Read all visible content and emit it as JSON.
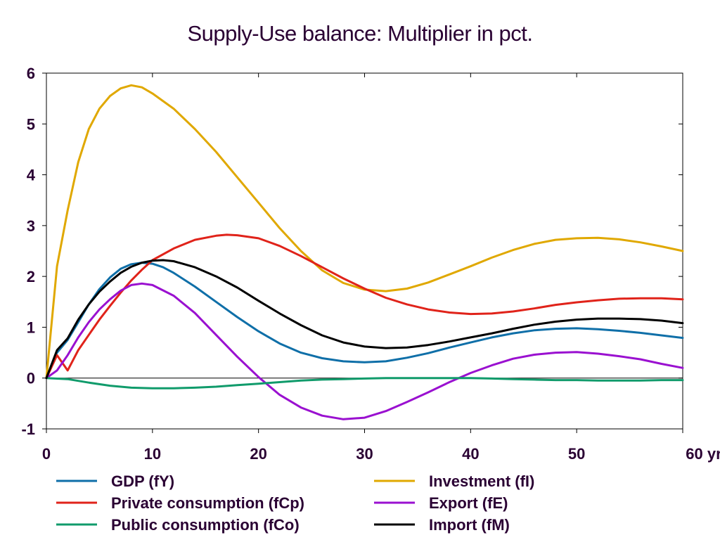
{
  "chart_data": {
    "type": "line",
    "title": "Supply-Use balance: Multiplier in pct.",
    "xlabel": "",
    "ylabel": "",
    "x_unit_label": "yr",
    "xlim": [
      0,
      60
    ],
    "ylim": [
      -1,
      6
    ],
    "x_ticks": [
      0,
      10,
      20,
      30,
      40,
      50,
      60
    ],
    "y_ticks": [
      -1,
      0,
      1,
      2,
      3,
      4,
      5,
      6
    ],
    "grid": false,
    "legend_position": "bottom",
    "series": [
      {
        "name": "GDP (fY)",
        "color": "#0f6fa8",
        "points": [
          [
            0,
            0
          ],
          [
            1,
            0.5
          ],
          [
            2,
            0.75
          ],
          [
            3,
            1.1
          ],
          [
            4,
            1.45
          ],
          [
            5,
            1.75
          ],
          [
            6,
            1.98
          ],
          [
            7,
            2.15
          ],
          [
            8,
            2.24
          ],
          [
            9,
            2.27
          ],
          [
            10,
            2.25
          ],
          [
            11,
            2.18
          ],
          [
            12,
            2.07
          ],
          [
            14,
            1.8
          ],
          [
            16,
            1.5
          ],
          [
            18,
            1.2
          ],
          [
            20,
            0.92
          ],
          [
            22,
            0.68
          ],
          [
            24,
            0.5
          ],
          [
            26,
            0.39
          ],
          [
            28,
            0.33
          ],
          [
            30,
            0.31
          ],
          [
            32,
            0.33
          ],
          [
            34,
            0.4
          ],
          [
            36,
            0.49
          ],
          [
            38,
            0.6
          ],
          [
            40,
            0.7
          ],
          [
            42,
            0.8
          ],
          [
            44,
            0.88
          ],
          [
            46,
            0.94
          ],
          [
            48,
            0.97
          ],
          [
            50,
            0.98
          ],
          [
            52,
            0.96
          ],
          [
            54,
            0.93
          ],
          [
            56,
            0.89
          ],
          [
            58,
            0.84
          ],
          [
            60,
            0.79
          ]
        ]
      },
      {
        "name": "Investment (fI)",
        "color": "#e0a800",
        "points": [
          [
            0,
            0
          ],
          [
            1,
            2.2
          ],
          [
            2,
            3.3
          ],
          [
            3,
            4.25
          ],
          [
            4,
            4.9
          ],
          [
            5,
            5.3
          ],
          [
            6,
            5.55
          ],
          [
            7,
            5.7
          ],
          [
            8,
            5.76
          ],
          [
            9,
            5.72
          ],
          [
            10,
            5.6
          ],
          [
            12,
            5.3
          ],
          [
            14,
            4.9
          ],
          [
            16,
            4.45
          ],
          [
            18,
            3.95
          ],
          [
            20,
            3.45
          ],
          [
            22,
            2.95
          ],
          [
            24,
            2.5
          ],
          [
            26,
            2.12
          ],
          [
            28,
            1.87
          ],
          [
            30,
            1.74
          ],
          [
            32,
            1.71
          ],
          [
            34,
            1.76
          ],
          [
            36,
            1.88
          ],
          [
            38,
            2.04
          ],
          [
            40,
            2.2
          ],
          [
            42,
            2.37
          ],
          [
            44,
            2.52
          ],
          [
            46,
            2.64
          ],
          [
            48,
            2.72
          ],
          [
            50,
            2.75
          ],
          [
            52,
            2.76
          ],
          [
            54,
            2.73
          ],
          [
            56,
            2.67
          ],
          [
            58,
            2.59
          ],
          [
            60,
            2.5
          ]
        ]
      },
      {
        "name": "Private consumption (fCp)",
        "color": "#e0231a",
        "points": [
          [
            0,
            0
          ],
          [
            1,
            0.45
          ],
          [
            2,
            0.15
          ],
          [
            3,
            0.55
          ],
          [
            4,
            0.85
          ],
          [
            5,
            1.15
          ],
          [
            6,
            1.42
          ],
          [
            7,
            1.68
          ],
          [
            8,
            1.92
          ],
          [
            9,
            2.13
          ],
          [
            10,
            2.32
          ],
          [
            12,
            2.55
          ],
          [
            14,
            2.72
          ],
          [
            16,
            2.8
          ],
          [
            17,
            2.82
          ],
          [
            18,
            2.81
          ],
          [
            20,
            2.75
          ],
          [
            22,
            2.6
          ],
          [
            24,
            2.4
          ],
          [
            26,
            2.18
          ],
          [
            28,
            1.96
          ],
          [
            30,
            1.76
          ],
          [
            32,
            1.58
          ],
          [
            34,
            1.45
          ],
          [
            36,
            1.35
          ],
          [
            38,
            1.29
          ],
          [
            40,
            1.26
          ],
          [
            42,
            1.27
          ],
          [
            44,
            1.31
          ],
          [
            46,
            1.37
          ],
          [
            48,
            1.44
          ],
          [
            50,
            1.49
          ],
          [
            52,
            1.53
          ],
          [
            54,
            1.56
          ],
          [
            56,
            1.57
          ],
          [
            58,
            1.57
          ],
          [
            60,
            1.55
          ]
        ]
      },
      {
        "name": "Export (fE)",
        "color": "#9a10d0",
        "points": [
          [
            0,
            0
          ],
          [
            1,
            0.15
          ],
          [
            2,
            0.45
          ],
          [
            3,
            0.8
          ],
          [
            4,
            1.1
          ],
          [
            5,
            1.35
          ],
          [
            6,
            1.55
          ],
          [
            7,
            1.72
          ],
          [
            8,
            1.83
          ],
          [
            9,
            1.86
          ],
          [
            10,
            1.83
          ],
          [
            12,
            1.62
          ],
          [
            14,
            1.28
          ],
          [
            16,
            0.85
          ],
          [
            18,
            0.42
          ],
          [
            20,
            0.02
          ],
          [
            22,
            -0.33
          ],
          [
            24,
            -0.58
          ],
          [
            26,
            -0.74
          ],
          [
            28,
            -0.81
          ],
          [
            30,
            -0.78
          ],
          [
            32,
            -0.65
          ],
          [
            34,
            -0.47
          ],
          [
            36,
            -0.28
          ],
          [
            38,
            -0.08
          ],
          [
            40,
            0.1
          ],
          [
            42,
            0.25
          ],
          [
            44,
            0.38
          ],
          [
            46,
            0.46
          ],
          [
            48,
            0.5
          ],
          [
            50,
            0.51
          ],
          [
            52,
            0.48
          ],
          [
            54,
            0.43
          ],
          [
            56,
            0.37
          ],
          [
            58,
            0.28
          ],
          [
            60,
            0.2
          ]
        ]
      },
      {
        "name": "Public consumption (fCo)",
        "color": "#109b6b",
        "points": [
          [
            0,
            0
          ],
          [
            2,
            -0.02
          ],
          [
            4,
            -0.09
          ],
          [
            6,
            -0.15
          ],
          [
            8,
            -0.19
          ],
          [
            10,
            -0.2
          ],
          [
            12,
            -0.2
          ],
          [
            14,
            -0.19
          ],
          [
            16,
            -0.17
          ],
          [
            18,
            -0.14
          ],
          [
            20,
            -0.11
          ],
          [
            22,
            -0.08
          ],
          [
            24,
            -0.05
          ],
          [
            26,
            -0.03
          ],
          [
            28,
            -0.02
          ],
          [
            30,
            -0.01
          ],
          [
            32,
            0.0
          ],
          [
            34,
            0.0
          ],
          [
            36,
            0.0
          ],
          [
            38,
            0.0
          ],
          [
            40,
            0.0
          ],
          [
            42,
            -0.01
          ],
          [
            44,
            -0.02
          ],
          [
            46,
            -0.03
          ],
          [
            48,
            -0.04
          ],
          [
            50,
            -0.04
          ],
          [
            52,
            -0.05
          ],
          [
            54,
            -0.05
          ],
          [
            56,
            -0.05
          ],
          [
            58,
            -0.04
          ],
          [
            60,
            -0.04
          ]
        ]
      },
      {
        "name": "Import (fM)",
        "color": "#000000",
        "points": [
          [
            0,
            0
          ],
          [
            1,
            0.55
          ],
          [
            2,
            0.78
          ],
          [
            3,
            1.15
          ],
          [
            4,
            1.45
          ],
          [
            5,
            1.7
          ],
          [
            6,
            1.9
          ],
          [
            7,
            2.07
          ],
          [
            8,
            2.19
          ],
          [
            9,
            2.27
          ],
          [
            10,
            2.31
          ],
          [
            11,
            2.32
          ],
          [
            12,
            2.3
          ],
          [
            14,
            2.18
          ],
          [
            16,
            2.0
          ],
          [
            18,
            1.78
          ],
          [
            20,
            1.52
          ],
          [
            22,
            1.27
          ],
          [
            24,
            1.04
          ],
          [
            26,
            0.84
          ],
          [
            28,
            0.7
          ],
          [
            30,
            0.62
          ],
          [
            32,
            0.59
          ],
          [
            34,
            0.6
          ],
          [
            36,
            0.65
          ],
          [
            38,
            0.72
          ],
          [
            40,
            0.8
          ],
          [
            42,
            0.88
          ],
          [
            44,
            0.97
          ],
          [
            46,
            1.05
          ],
          [
            48,
            1.11
          ],
          [
            50,
            1.15
          ],
          [
            52,
            1.17
          ],
          [
            54,
            1.17
          ],
          [
            56,
            1.16
          ],
          [
            58,
            1.13
          ],
          [
            60,
            1.08
          ]
        ]
      }
    ],
    "legend_layout": [
      "GDP (fY)",
      "Investment (fI)",
      "Private consumption (fCp)",
      "Export (fE)",
      "Public consumption (fCo)",
      "Import (fM)"
    ]
  }
}
